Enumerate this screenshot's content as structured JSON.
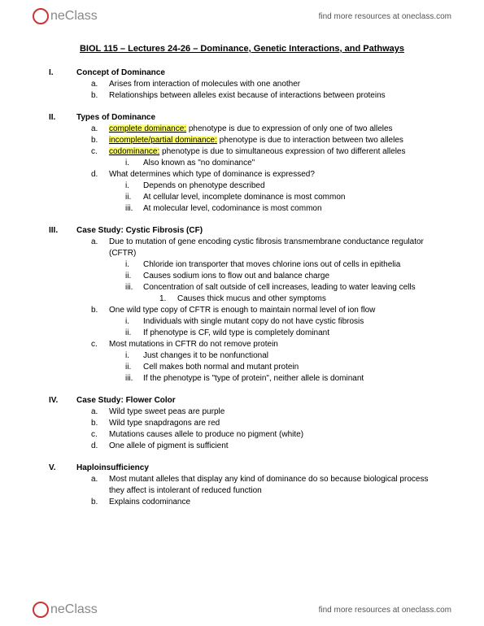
{
  "brand": "neClass",
  "header_link": "find more resources at oneclass.com",
  "footer_link": "find more resources at oneclass.com",
  "title": "BIOL 115 – Lectures 24-26 – Dominance, Genetic Interactions, and Pathways",
  "s1": {
    "num": "I.",
    "head": "Concept of Dominance",
    "a": "Arises from interaction of molecules with one another",
    "b": "Relationships between alleles exist because of interactions between proteins"
  },
  "s2": {
    "num": "II.",
    "head": "Types of Dominance",
    "a_hl": "complete dominance:",
    "a_rest": " phenotype is due to expression of only one of two alleles",
    "b_hl": "incomplete/partial dominance:",
    "b_rest": " phenotype is due to interaction between two alleles",
    "c_hl": "codominance:",
    "c_rest": " phenotype is due to simultaneous expression of two different alleles",
    "c_i": "Also known as \"no dominance\"",
    "d": "What determines which type of dominance is expressed?",
    "d_i": "Depends on phenotype described",
    "d_ii": "At cellular level, incomplete dominance is most common",
    "d_iii": "At molecular level, codominance is most common"
  },
  "s3": {
    "num": "III.",
    "head": "Case Study: Cystic Fibrosis (CF)",
    "a": "Due to mutation of gene encoding cystic fibrosis transmembrane conductance regulator (CFTR)",
    "a_i": "Chloride ion transporter that moves chlorine ions out of cells in epithelia",
    "a_ii": "Causes sodium ions to flow out and balance charge",
    "a_iii": "Concentration of salt outside of cell increases, leading to water leaving cells",
    "a_iii_1": "Causes thick mucus and other symptoms",
    "b": "One wild type copy of CFTR is enough to maintain normal level of ion flow",
    "b_i": "Individuals with single mutant copy do not have cystic fibrosis",
    "b_ii": "If phenotype is CF, wild type is completely dominant",
    "c": "Most mutations in CFTR do not remove protein",
    "c_i": "Just changes it to be nonfunctional",
    "c_ii": "Cell makes both normal and mutant protein",
    "c_iii": "If the phenotype is \"type of protein\", neither allele is dominant"
  },
  "s4": {
    "num": "IV.",
    "head": "Case Study: Flower Color",
    "a": "Wild type sweet peas are purple",
    "b": "Wild type snapdragons are red",
    "c": "Mutations causes allele to produce no pigment (white)",
    "d": "One allele of pigment is sufficient"
  },
  "s5": {
    "num": "V.",
    "head": "Haploinsufficiency",
    "a": "Most mutant alleles that display any kind of dominance do so because biological process they affect is intolerant of reduced function",
    "b": "Explains codominance"
  }
}
